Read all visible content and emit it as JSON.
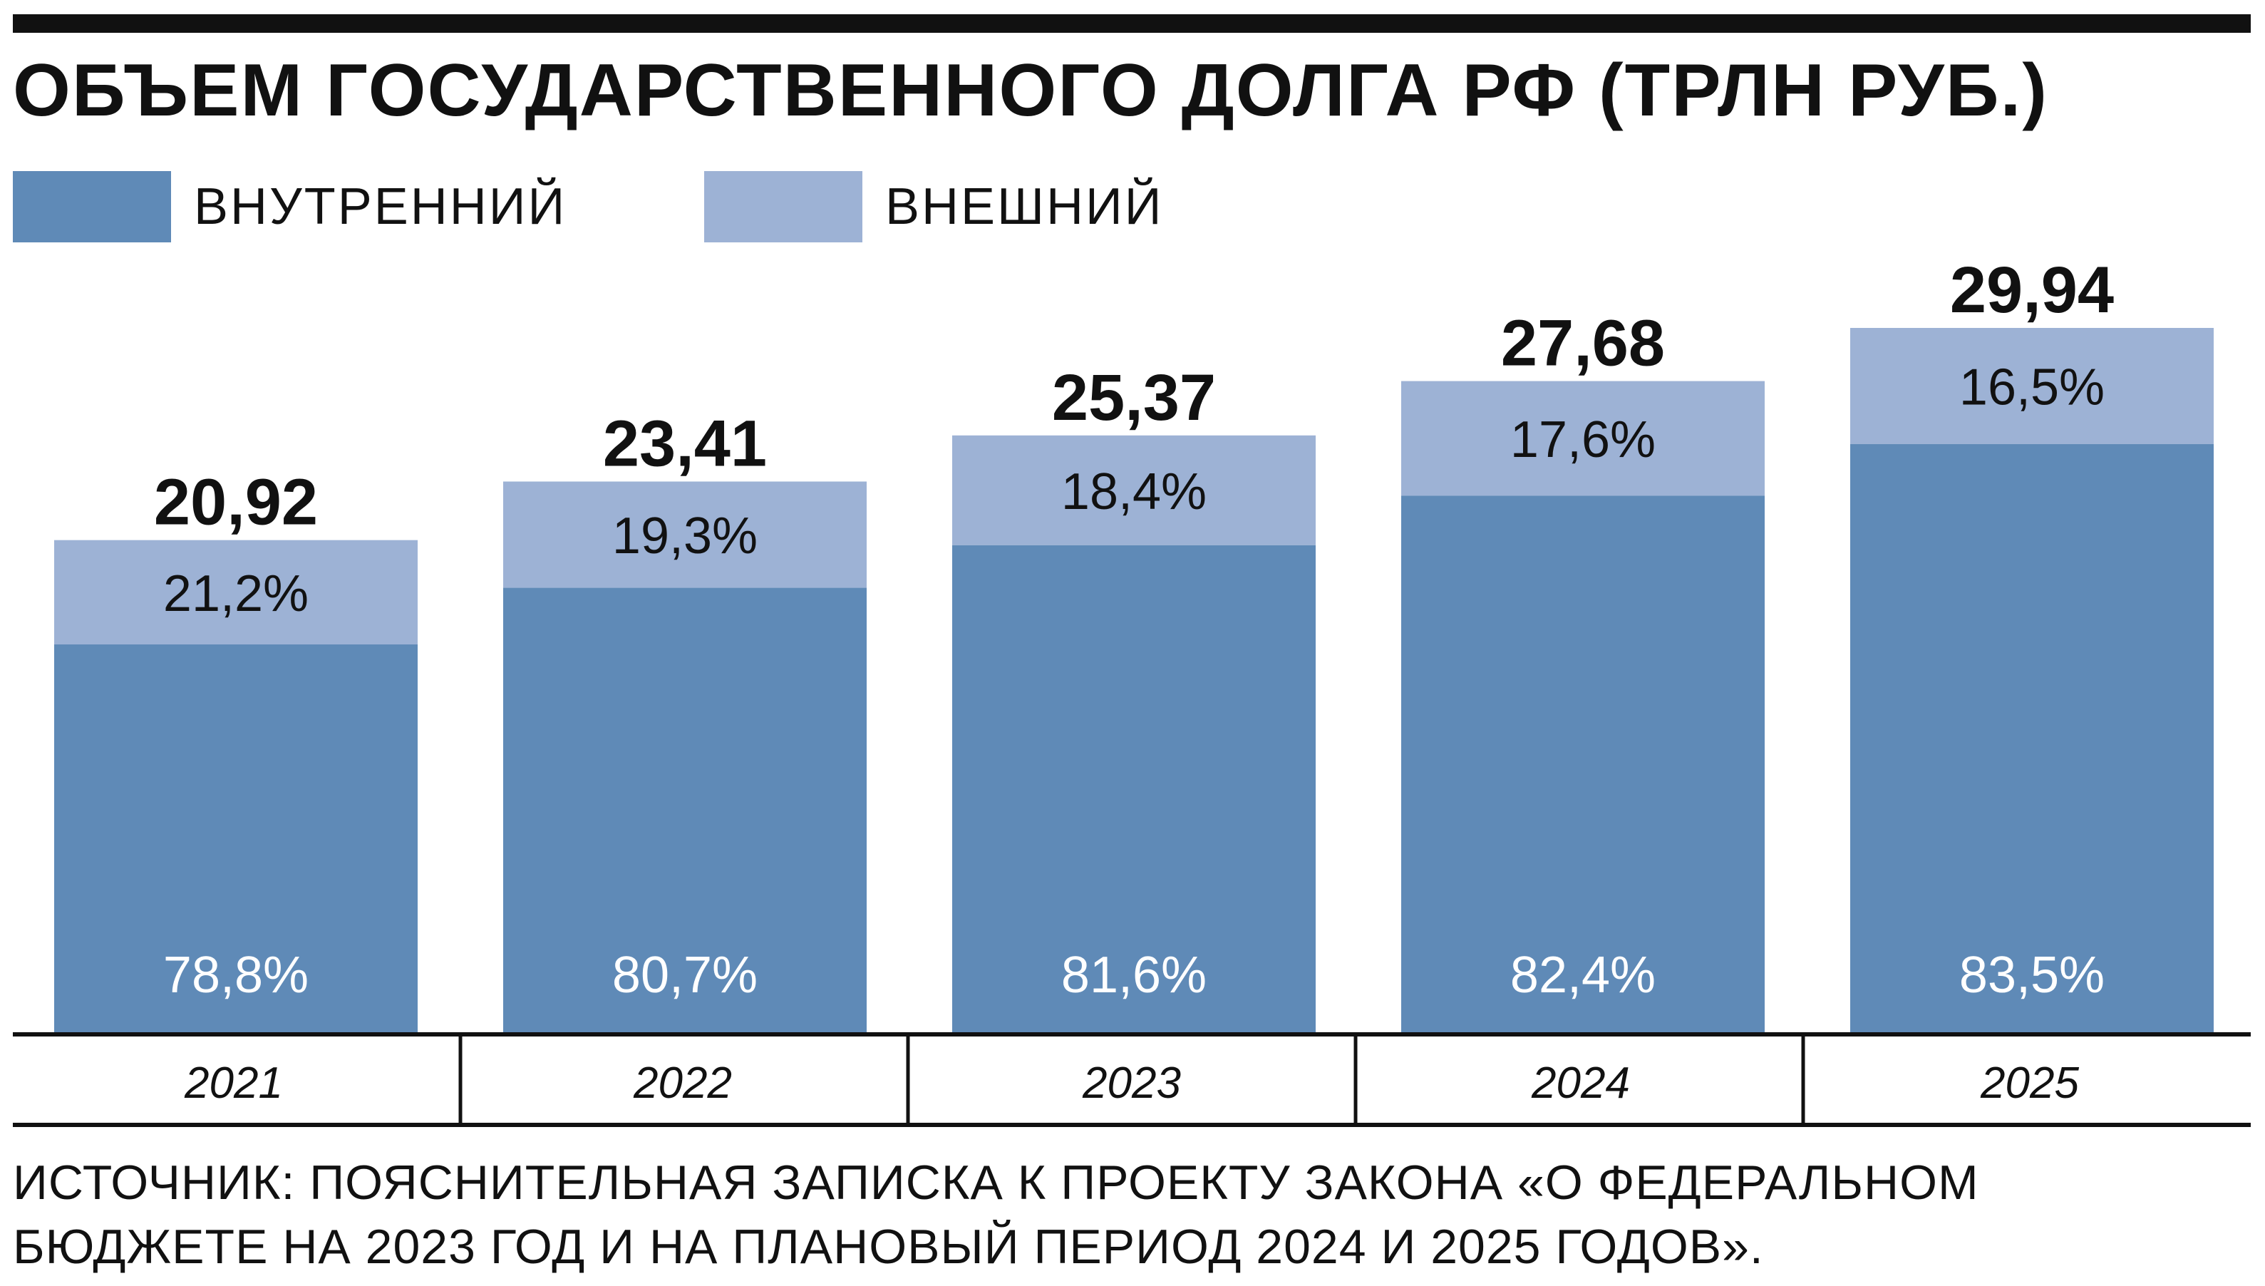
{
  "title": "ОБЪЕМ ГОСУДАРСТВЕННОГО ДОЛГА РФ (ТРЛН РУБ.)",
  "legend": [
    {
      "label": "ВНУТРЕННИЙ",
      "color": "#5f8ab7"
    },
    {
      "label": "ВНЕШНИЙ",
      "color": "#9db2d5"
    }
  ],
  "chart_data": {
    "type": "bar",
    "stacked": true,
    "categories": [
      "2021",
      "2022",
      "2023",
      "2024",
      "2025"
    ],
    "totals": [
      20.92,
      23.41,
      25.37,
      27.68,
      29.94
    ],
    "total_labels": [
      "20,92",
      "23,41",
      "25,37",
      "27,68",
      "29,94"
    ],
    "series": [
      {
        "name": "ВНУТРЕННИЙ",
        "color": "#5f8ab7",
        "shares": [
          78.8,
          80.7,
          81.6,
          82.4,
          83.5
        ],
        "labels": [
          "78,8%",
          "80,7%",
          "81,6%",
          "82,4%",
          "83,5%"
        ]
      },
      {
        "name": "ВНЕШНИЙ",
        "color": "#9db2d5",
        "shares": [
          21.2,
          19.3,
          18.4,
          17.6,
          16.5
        ],
        "labels": [
          "21,2%",
          "19,3%",
          "18,4%",
          "17,6%",
          "16,5%"
        ]
      }
    ],
    "grid": false
  },
  "source_lines": [
    "ИСТОЧНИК: ПОЯСНИТЕЛЬНАЯ ЗАПИСКА К ПРОЕКТУ ЗАКОНА «О ФЕДЕРАЛЬНОМ",
    "БЮДЖЕТЕ НА 2023 ГОД И НА ПЛАНОВЫЙ ПЕРИОД 2024 И 2025 ГОДОВ»."
  ]
}
